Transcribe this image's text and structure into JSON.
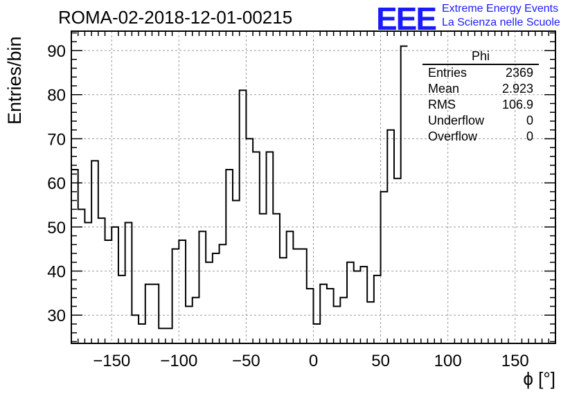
{
  "header": {
    "title": "ROMA-02-2018-12-01-00215",
    "logo": "EEE",
    "logo_line1": "Extreme Energy Events",
    "logo_line2": "La Scienza nelle Scuole"
  },
  "stats_box": {
    "name": "Phi",
    "rows": [
      {
        "label": "Entries",
        "value": "2369"
      },
      {
        "label": "Mean",
        "value": "2.923"
      },
      {
        "label": "RMS",
        "value": "106.9"
      },
      {
        "label": "Underflow",
        "value": "0"
      },
      {
        "label": "Overflow",
        "value": "0"
      }
    ]
  },
  "chart_data": {
    "type": "bar",
    "title": "ROMA-02-2018-12-01-00215",
    "xlabel": "ϕ [°]",
    "ylabel": "Entries/bin",
    "xlim": [
      -180,
      180
    ],
    "ylim": [
      23.6,
      94.4
    ],
    "bin_width": 5,
    "xticks": [
      -150,
      -100,
      -50,
      0,
      50,
      100,
      150
    ],
    "xtick_labels": [
      "−150",
      "−100",
      "−50",
      "0",
      "50",
      "100",
      "150"
    ],
    "yticks": [
      30,
      40,
      50,
      60,
      70,
      80,
      90
    ],
    "ytick_labels": [
      "30",
      "40",
      "50",
      "60",
      "70",
      "80",
      "90"
    ],
    "grid": true,
    "legend": "top-right",
    "bin_edges_start": -180,
    "values": [
      63,
      54,
      51,
      65,
      52,
      47,
      50,
      39,
      51,
      30,
      28,
      37,
      37,
      27,
      27,
      45,
      47,
      32,
      34,
      49,
      42,
      44,
      46,
      63,
      56,
      81,
      70,
      67,
      53,
      67,
      53,
      43,
      49,
      45,
      45,
      36,
      28,
      37,
      36,
      32,
      34,
      42,
      40,
      41,
      33,
      39,
      58,
      72,
      61,
      91
    ]
  },
  "colors": {
    "line": "#000000",
    "grid": "#999999",
    "logo": "#1a1aff"
  }
}
